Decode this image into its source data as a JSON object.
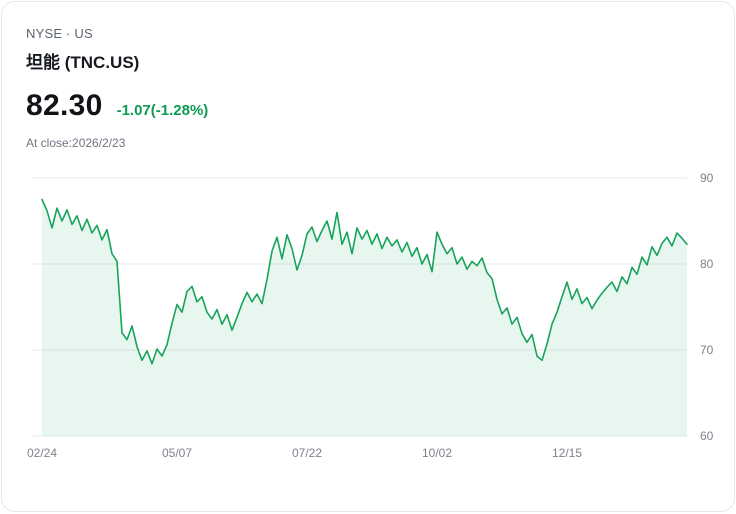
{
  "header": {
    "exchange_line": "NYSE · US",
    "name": "坦能 (TNC.US)",
    "price": "82.30",
    "change": "-1.07(-1.28%)",
    "close_note": "At close:2026/2/23"
  },
  "colors": {
    "change_green": "#0f9b53",
    "line_green": "#18a35b",
    "area_green": "rgba(24,163,91,0.10)",
    "grid_line": "#e7e9ec",
    "axis_text": "#7d828c",
    "muted_text": "#6e7581",
    "name_text": "#16191f",
    "price_text": "#101317"
  },
  "chart_data": {
    "type": "line",
    "xlabel": "",
    "ylabel": "",
    "ylim": [
      60,
      90
    ],
    "y_ticks": [
      90,
      80,
      70,
      60
    ],
    "yaxis_side": "right",
    "grid": "horizontal",
    "legend": false,
    "area_fill": true,
    "x_ticks": [
      {
        "label": "02/24",
        "i": 0
      },
      {
        "label": "05/07",
        "i": 27
      },
      {
        "label": "07/22",
        "i": 53
      },
      {
        "label": "10/02",
        "i": 79
      },
      {
        "label": "12/15",
        "i": 105
      }
    ],
    "series": [
      {
        "name": "TNC.US",
        "values": [
          87.5,
          86.2,
          84.2,
          86.5,
          85.0,
          86.3,
          84.6,
          85.6,
          83.9,
          85.2,
          83.6,
          84.5,
          82.8,
          84.0,
          81.2,
          80.3,
          72.0,
          71.2,
          72.8,
          70.4,
          68.8,
          69.9,
          68.4,
          70.1,
          69.3,
          70.6,
          73.1,
          75.3,
          74.4,
          76.8,
          77.4,
          75.6,
          76.2,
          74.4,
          73.6,
          74.7,
          73.0,
          74.1,
          72.3,
          73.8,
          75.4,
          76.7,
          75.6,
          76.5,
          75.4,
          78.2,
          81.5,
          83.1,
          80.6,
          83.4,
          81.8,
          79.3,
          81.0,
          83.5,
          84.3,
          82.6,
          83.9,
          85.0,
          82.9,
          86.0,
          82.3,
          83.7,
          81.2,
          84.2,
          82.9,
          83.9,
          82.3,
          83.5,
          81.8,
          83.1,
          82.1,
          82.8,
          81.4,
          82.5,
          80.9,
          81.9,
          80.0,
          81.1,
          79.1,
          83.7,
          82.3,
          81.2,
          81.9,
          80.0,
          80.8,
          79.4,
          80.3,
          79.8,
          80.7,
          79.0,
          78.3,
          75.9,
          74.2,
          74.9,
          73.0,
          73.8,
          71.9,
          70.9,
          71.8,
          69.3,
          68.8,
          70.7,
          73.0,
          74.4,
          76.2,
          77.9,
          75.9,
          77.1,
          75.4,
          76.1,
          74.8,
          75.8,
          76.6,
          77.3,
          77.9,
          76.8,
          78.5,
          77.7,
          79.6,
          78.8,
          80.8,
          79.9,
          82.0,
          81.0,
          82.4,
          83.1,
          82.1,
          83.6,
          83.0,
          82.3
        ]
      }
    ]
  }
}
